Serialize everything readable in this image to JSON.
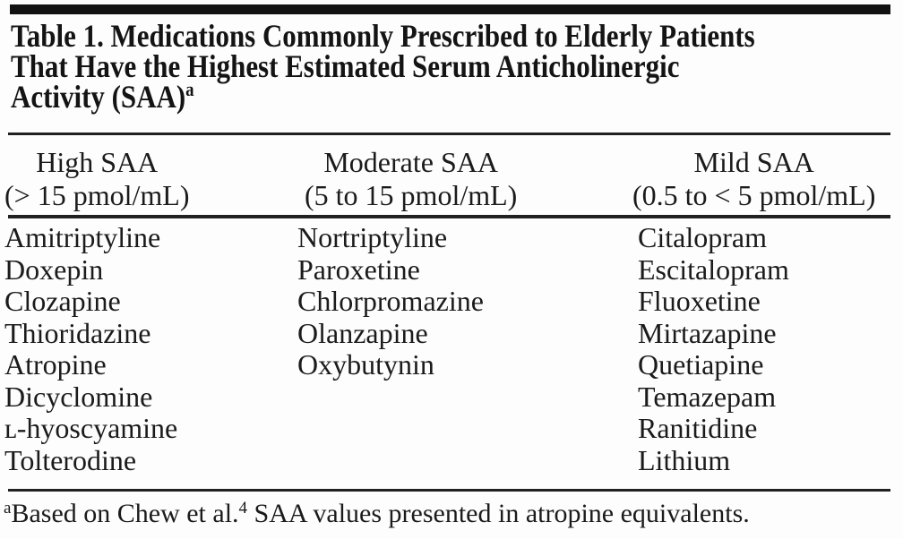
{
  "title": {
    "lines": [
      "Table 1. Medications Commonly Prescribed to Elderly Patients",
      "That Have the Highest Estimated Serum Anticholinergic",
      "Activity (SAA)"
    ],
    "footnote_marker": "a"
  },
  "table": {
    "columns": [
      {
        "header": "High SAA",
        "range": "(> 15 pmol/mL)",
        "drugs": [
          "Amitriptyline",
          "Doxepin",
          "Clozapine",
          "Thioridazine",
          "Atropine",
          "Dicyclomine",
          "ʟ-hyoscyamine",
          "Tolterodine"
        ]
      },
      {
        "header": "Moderate SAA",
        "range": "(5 to 15 pmol/mL)",
        "drugs": [
          "Nortriptyline",
          "Paroxetine",
          "Chlorpromazine",
          "Olanzapine",
          "Oxybutynin"
        ]
      },
      {
        "header": "Mild SAA",
        "range": "(0.5 to < 5 pmol/mL)",
        "drugs": [
          "Citalopram",
          "Escitalopram",
          "Fluoxetine",
          "Mirtazapine",
          "Quetiapine",
          "Temazepam",
          "Ranitidine",
          "Lithium"
        ]
      }
    ]
  },
  "footnote": {
    "marker": "a",
    "text_before_ref": "Based on Chew et al.",
    "ref_number": "4",
    "text_after_ref": " SAA values presented in atropine equivalents."
  },
  "colors": {
    "text": "#1b1b1b",
    "rules": "#212121",
    "top_bar": "#121212",
    "background": "#fdfdfd"
  }
}
